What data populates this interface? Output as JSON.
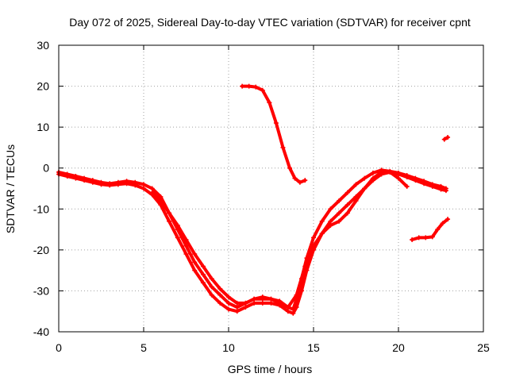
{
  "chart_data": {
    "type": "scatter",
    "title": "Day 072 of 2025, Sidereal Day-to-day VTEC variation (SDTVAR) for receiver cpnt",
    "xlabel": "GPS time / hours",
    "ylabel": "SDTVAR / TECUs",
    "xlim": [
      0,
      25
    ],
    "ylim": [
      -40,
      30
    ],
    "x_ticks": [
      0,
      5,
      10,
      15,
      20,
      25
    ],
    "y_ticks": [
      -40,
      -30,
      -20,
      -10,
      0,
      10,
      20,
      30
    ],
    "grid": true,
    "series_color": "#ff0000",
    "series": [
      {
        "name": "track-a",
        "x": [
          0,
          0.5,
          1,
          1.5,
          2,
          2.5,
          3,
          3.5,
          4,
          4.5,
          5,
          5.5,
          6,
          6.5,
          7,
          7.5,
          8,
          8.5,
          9,
          9.5,
          10,
          10.5,
          11,
          11.5,
          12,
          12.5,
          13,
          13.5,
          13.8,
          14,
          14.3,
          14.6,
          15,
          15.5,
          16,
          16.5,
          17,
          17.5,
          18,
          18.5,
          19,
          19.5,
          20,
          20.5,
          21,
          21.5,
          22,
          22.5,
          22.8
        ],
        "y": [
          -1,
          -1.5,
          -2,
          -2.5,
          -3,
          -3.5,
          -3.8,
          -3.5,
          -3.2,
          -3.5,
          -4,
          -5,
          -7,
          -11,
          -15,
          -19,
          -23,
          -26,
          -29,
          -31,
          -33,
          -34,
          -33,
          -32,
          -32,
          -32,
          -32.5,
          -34,
          -34.5,
          -32,
          -27,
          -22,
          -17,
          -13,
          -10,
          -8,
          -6,
          -4,
          -2.5,
          -1.2,
          -0.5,
          -0.8,
          -1.2,
          -1.8,
          -2.5,
          -3.2,
          -4,
          -4.5,
          -5
        ]
      },
      {
        "name": "track-b",
        "x": [
          0,
          0.5,
          1,
          1.5,
          2,
          2.5,
          3,
          3.5,
          4,
          4.5,
          5,
          5.5,
          6,
          6.5,
          7,
          7.5,
          8,
          8.5,
          9,
          9.5,
          10,
          10.5,
          11,
          11.5,
          12,
          12.5,
          13,
          13.5,
          13.8,
          14,
          14.3,
          14.6,
          15,
          15.5,
          16,
          16.5,
          17,
          17.5,
          18,
          18.5,
          19,
          19.5,
          20,
          20.5,
          21,
          21.5,
          22,
          22.5,
          22.8
        ],
        "y": [
          -1.5,
          -2,
          -2.5,
          -3,
          -3.5,
          -4,
          -4.2,
          -4,
          -3.8,
          -4.2,
          -5,
          -6.5,
          -9,
          -13,
          -17,
          -21,
          -25,
          -28,
          -31,
          -33,
          -34.5,
          -35,
          -34,
          -33,
          -33,
          -33,
          -33.5,
          -35,
          -35.5,
          -34,
          -30,
          -25,
          -20,
          -16,
          -13,
          -11,
          -9,
          -7,
          -5,
          -3,
          -1.5,
          -1,
          -1.5,
          -2.2,
          -3,
          -3.8,
          -4.5,
          -5.2,
          -5.5
        ]
      },
      {
        "name": "track-c",
        "x": [
          5.5,
          6,
          6.5,
          7,
          7.5,
          8,
          8.5,
          9,
          9.5,
          10,
          10.5,
          11,
          11.5,
          12,
          12.5,
          13,
          13.5,
          14,
          14.5,
          15,
          15.5,
          16,
          16.5,
          17,
          17.5,
          18,
          18.5,
          19,
          19.5,
          20,
          20.5
        ],
        "y": [
          -6,
          -8,
          -11,
          -14,
          -17.5,
          -21,
          -24,
          -27,
          -29.5,
          -31.5,
          -33,
          -33,
          -32,
          -31.5,
          -32,
          -33,
          -34,
          -31,
          -24,
          -19,
          -16,
          -14,
          -13,
          -11,
          -8,
          -5,
          -2.5,
          -1,
          -1,
          -2.5,
          -4.5
        ]
      },
      {
        "name": "track-d",
        "x": [
          10.8,
          11.2,
          11.6,
          12,
          12.4,
          12.8,
          13.2,
          13.6,
          13.9,
          14.2,
          14.5
        ],
        "y": [
          20,
          20,
          19.8,
          19,
          16,
          11,
          5,
          0,
          -2.5,
          -3.5,
          -3
        ]
      },
      {
        "name": "track-e",
        "x": [
          20.8,
          21.2,
          21.6,
          22,
          22.3,
          22.6,
          22.9
        ],
        "y": [
          -17.5,
          -17,
          -17,
          -16.8,
          -15,
          -13.5,
          -12.5
        ]
      },
      {
        "name": "track-f",
        "x": [
          22.7,
          22.9
        ],
        "y": [
          7,
          7.5
        ]
      }
    ]
  }
}
